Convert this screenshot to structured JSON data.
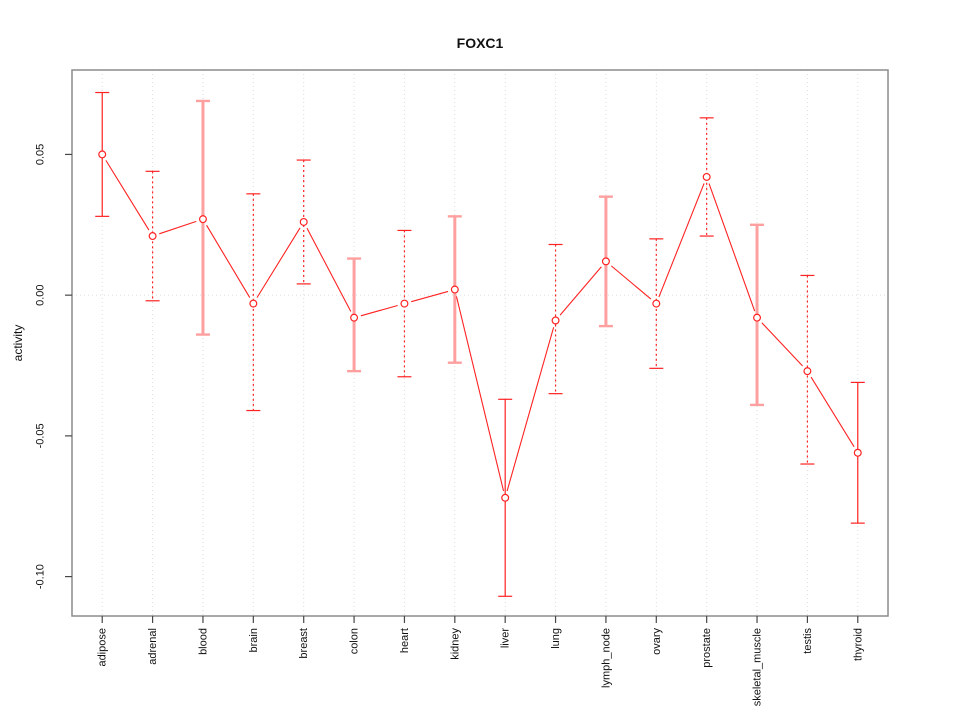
{
  "window": {
    "background": "#ffffff"
  },
  "chart_data": {
    "type": "line",
    "title": "FOXC1",
    "xlabel": "",
    "ylabel": "activity",
    "legend": "none",
    "grid": {
      "vertical_dotted_per_category": true,
      "horizontal_dotted_zero_line": true
    },
    "ylim": [
      -0.114,
      0.08
    ],
    "yticks": [
      0.05,
      0.0,
      -0.05,
      -0.1
    ],
    "ytick_labels": [
      "0.05",
      "0.00",
      "-0.05",
      "-0.10"
    ],
    "categories": [
      "adipose",
      "adrenal",
      "blood",
      "brain",
      "breast",
      "colon",
      "heart",
      "kidney",
      "liver",
      "lung",
      "lymph_node",
      "ovary",
      "prostate",
      "skeletal_muscle",
      "testis",
      "thyroid"
    ],
    "series": [
      {
        "name": "activity",
        "marker": "open-circle",
        "values": [
          0.05,
          0.021,
          0.027,
          -0.003,
          0.026,
          -0.008,
          -0.003,
          0.002,
          -0.072,
          -0.009,
          0.012,
          -0.003,
          0.042,
          -0.008,
          -0.027,
          -0.056
        ],
        "ci_lower": [
          0.028,
          -0.002,
          -0.014,
          -0.041,
          0.004,
          -0.027,
          -0.029,
          -0.024,
          -0.107,
          -0.035,
          -0.011,
          -0.026,
          0.021,
          -0.039,
          -0.06,
          -0.081
        ],
        "ci_upper": [
          0.072,
          0.044,
          0.069,
          0.036,
          0.048,
          0.013,
          0.023,
          0.028,
          -0.037,
          0.018,
          0.035,
          0.02,
          0.063,
          0.025,
          0.007,
          -0.031
        ],
        "error_bar_styles": [
          "solid",
          "dotted",
          "wide",
          "dotted",
          "dotted",
          "wide",
          "dotted",
          "wide",
          "solid",
          "dotted",
          "wide",
          "dotted",
          "dotted",
          "wide",
          "dotted",
          "solid"
        ]
      }
    ],
    "colors": {
      "series": "#ff2222",
      "error_bar_wide": "#ffa0a0",
      "grid": "#dcdcdc",
      "box": "#8c8c8c",
      "tick": "#474747",
      "text": "#111111"
    }
  }
}
